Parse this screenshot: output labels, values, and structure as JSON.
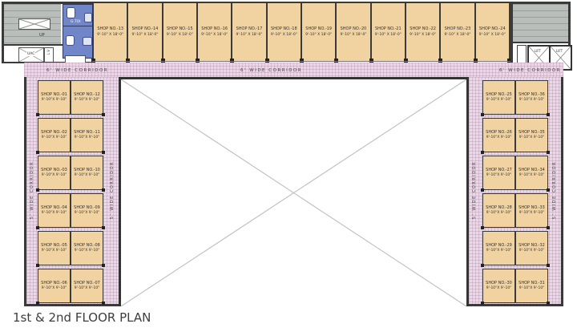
{
  "title": "1st & 2nd FLOOR PLAN",
  "labels": {
    "up": "UP",
    "uac": "UAC",
    "lv": "L V",
    "fhc": "FHC",
    "toilet": "G.TOI",
    "lift": "LIFT"
  },
  "corridors": {
    "top_left": "6' WIDE CORRIDOR",
    "top_center": "6' WIDE CORRIDOR",
    "top_right": "6' WIDE CORRIDOR",
    "side": "5' WIDE CORRIDOR"
  },
  "top_shops": {
    "size": "9'-10\" X 18'-0\"",
    "names": [
      "SHOP NO.-13",
      "SHOP NO.-14",
      "SHOP NO.-15",
      "SHOP NO.-16",
      "SHOP NO.-17",
      "SHOP NO.-18",
      "SHOP NO.-19",
      "SHOP NO.-20",
      "SHOP NO.-21",
      "SHOP NO.-22",
      "SHOP NO.-23",
      "SHOP NO.-24"
    ]
  },
  "left_block": {
    "size": "9'-10\"X 9'-10\"",
    "rows": [
      [
        "SHOP NO.-01",
        "SHOP NO.-12"
      ],
      [
        "SHOP NO.-02",
        "SHOP NO.-11"
      ],
      [
        "SHOP NO.-03",
        "SHOP NO.-10"
      ],
      [
        "SHOP NO.-04",
        "SHOP NO.-09"
      ],
      [
        "SHOP NO.-05",
        "SHOP NO.-08"
      ],
      [
        "SHOP NO.-06",
        "SHOP NO.-07"
      ]
    ]
  },
  "right_block": {
    "size": "9'-10\"X 9'-10\"",
    "rows": [
      [
        "SHOP NO.-25",
        "SHOP NO.-36"
      ],
      [
        "SHOP NO.-26",
        "SHOP NO.-35"
      ],
      [
        "SHOP NO.-27",
        "SHOP NO.-34"
      ],
      [
        "SHOP NO.-28",
        "SHOP NO.-33"
      ],
      [
        "SHOP NO.-29",
        "SHOP NO.-32"
      ],
      [
        "SHOP NO.-30",
        "SHOP NO.-31"
      ]
    ]
  },
  "colors": {
    "shop": "#f1d3a1",
    "corridor": "#e9d9e6",
    "toilet": "#7186c8",
    "stair": "#b9beba",
    "wall": "#3a3a3a"
  }
}
